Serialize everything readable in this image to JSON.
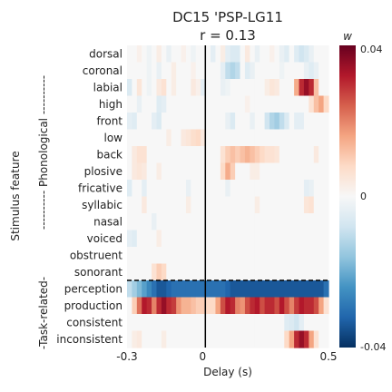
{
  "chart_data": {
    "type": "heatmap",
    "title": "DC15 'PSP-LG11",
    "subtitle": "r = 0.13",
    "xlabel": "Delay (s)",
    "ylabel": "Stimulus feature",
    "x_range": [
      -0.3,
      0.5
    ],
    "x_ticks": [
      "-0.3",
      "0",
      "0.5"
    ],
    "rows": [
      "dorsal",
      "coronal",
      "labial",
      "high",
      "front",
      "low",
      "back",
      "plosive",
      "fricative",
      "syllabic",
      "nasal",
      "voiced",
      "obstruent",
      "sonorant",
      "perception",
      "production",
      "consistent",
      "inconsistent"
    ],
    "groups": [
      {
        "label": "---------- Phonological ----------",
        "rows": [
          "dorsal",
          "coronal",
          "labial",
          "high",
          "front",
          "low",
          "back",
          "plosive",
          "fricative",
          "syllabic",
          "nasal",
          "voiced",
          "obstruent",
          "sonorant"
        ]
      },
      {
        "label": "-Task-related-",
        "rows": [
          "perception",
          "production",
          "consistent",
          "inconsistent"
        ]
      }
    ],
    "colorbar": {
      "label": "w",
      "max_label": "0.04",
      "mid_label": "0",
      "min_label": "-0.04",
      "vmin": -0.04,
      "vmax": 0.04,
      "colormap": "RdBu_r"
    },
    "n_delays": 41,
    "weights_note": "w values per row (41 delays from -0.3 s to 0.5 s), estimated from the colour",
    "values": [
      [
        0.0,
        0.0,
        0.002,
        0.0,
        -0.002,
        0.0,
        0.003,
        0.0,
        -0.003,
        0.0,
        0.0,
        0.002,
        0.0,
        -0.002,
        0.0,
        0.0,
        0.0,
        -0.004,
        0.0,
        0.003,
        -0.004,
        -0.006,
        -0.006,
        0.0,
        0.004,
        0.0,
        -0.003,
        0.0,
        0.0,
        0.002,
        0.0,
        -0.003,
        -0.005,
        0.0,
        -0.005,
        -0.008,
        -0.006,
        -0.003,
        0.0,
        0.0,
        0.0
      ],
      [
        0.0,
        0.0,
        0.0,
        0.0,
        -0.002,
        0.0,
        -0.003,
        0.0,
        0.0,
        0.003,
        0.0,
        0.0,
        0.0,
        0.002,
        0.0,
        0.0,
        0.0,
        0.0,
        0.0,
        -0.004,
        -0.01,
        -0.012,
        -0.01,
        0.0,
        -0.005,
        -0.003,
        0.0,
        0.0,
        0.0,
        0.0,
        0.0,
        -0.002,
        0.0,
        0.0,
        0.0,
        0.0,
        -0.003,
        -0.005,
        -0.003,
        0.0,
        0.0
      ],
      [
        -0.006,
        0.0,
        0.005,
        0.0,
        -0.002,
        0.0,
        0.004,
        0.006,
        0.0,
        0.003,
        0.0,
        0.0,
        0.0,
        0.004,
        0.002,
        -0.004,
        0.0,
        0.0,
        0.0,
        -0.003,
        -0.002,
        0.0,
        0.0,
        0.0,
        0.0,
        0.0,
        0.0,
        0.0,
        0.003,
        0.005,
        0.004,
        0.0,
        0.0,
        0.0,
        0.015,
        0.03,
        0.035,
        0.03,
        0.012,
        0.0,
        0.0
      ],
      [
        0.0,
        0.0,
        -0.003,
        0.0,
        0.0,
        0.0,
        -0.005,
        -0.004,
        0.0,
        0.0,
        0.0,
        0.0,
        0.0,
        0.0,
        0.0,
        0.0,
        0.0,
        0.0,
        0.0,
        0.0,
        0.0,
        0.0,
        0.0,
        0.0,
        0.002,
        0.0,
        0.0,
        0.0,
        0.0,
        0.0,
        0.0,
        0.0,
        0.0,
        0.0,
        0.0,
        0.0,
        0.0,
        0.006,
        0.012,
        0.016,
        0.008
      ],
      [
        -0.004,
        -0.005,
        0.0,
        0.0,
        0.0,
        -0.004,
        -0.006,
        0.0,
        0.0,
        0.0,
        0.0,
        0.0,
        0.0,
        0.0,
        0.0,
        0.0,
        0.0,
        0.0,
        0.0,
        0.0,
        -0.003,
        -0.006,
        0.0,
        0.0,
        0.0,
        -0.003,
        0.0,
        0.0,
        -0.008,
        -0.012,
        -0.014,
        -0.01,
        -0.006,
        0.0,
        -0.004,
        -0.004,
        0.0,
        0.0,
        0.0,
        0.0,
        0.0
      ],
      [
        0.0,
        0.0,
        0.0,
        0.0,
        0.0,
        0.0,
        0.0,
        0.0,
        0.003,
        0.0,
        0.0,
        0.004,
        0.005,
        0.007,
        0.008,
        0.004,
        0.0,
        0.0,
        0.0,
        0.0,
        0.0,
        0.0,
        0.0,
        0.0,
        0.0,
        0.0,
        0.0,
        0.0,
        0.0,
        0.0,
        0.0,
        0.0,
        0.0,
        0.0,
        0.0,
        0.0,
        0.0,
        0.0,
        0.0,
        0.0,
        0.0
      ],
      [
        0.0,
        0.004,
        0.006,
        0.006,
        0.0,
        0.0,
        0.0,
        0.0,
        0.0,
        0.0,
        0.0,
        0.0,
        0.0,
        0.0,
        0.0,
        0.0,
        0.0,
        0.0,
        0.0,
        0.006,
        0.01,
        0.012,
        0.01,
        0.012,
        0.014,
        0.012,
        0.01,
        0.008,
        0.006,
        0.006,
        0.005,
        0.0,
        0.0,
        0.0,
        0.0,
        0.0,
        0.0,
        0.0,
        0.004,
        0.0,
        0.0
      ],
      [
        0.0,
        0.004,
        0.005,
        0.004,
        0.0,
        0.0,
        0.003,
        0.0,
        0.0,
        0.0,
        0.0,
        0.0,
        0.0,
        0.0,
        0.0,
        0.0,
        0.0,
        0.0,
        0.0,
        0.008,
        0.015,
        0.01,
        0.0,
        0.0,
        0.0,
        0.003,
        0.003,
        0.0,
        0.0,
        0.0,
        0.0,
        0.0,
        0.0,
        0.0,
        0.0,
        0.0,
        0.0,
        0.0,
        0.0,
        0.0,
        0.0
      ],
      [
        -0.005,
        0.0,
        0.0,
        -0.004,
        0.0,
        0.0,
        0.0,
        0.0,
        0.0,
        0.0,
        0.0,
        0.0,
        -0.003,
        0.0,
        0.0,
        0.0,
        0.0,
        0.0,
        0.0,
        0.0,
        -0.003,
        0.0,
        0.0,
        0.0,
        0.0,
        0.0,
        0.0,
        0.0,
        0.0,
        0.0,
        0.0,
        0.0,
        0.0,
        0.0,
        0.0,
        0.0,
        -0.004,
        -0.003,
        0.0,
        0.0,
        0.0
      ],
      [
        0.0,
        0.0,
        0.0,
        0.004,
        0.0,
        0.0,
        0.0,
        0.0,
        0.0,
        0.0,
        0.0,
        0.0,
        0.003,
        0.0,
        0.0,
        0.0,
        0.0,
        0.0,
        0.0,
        0.0,
        0.0,
        0.0,
        0.0,
        0.0,
        0.0,
        0.0,
        0.003,
        0.0,
        0.0,
        0.0,
        0.0,
        0.0,
        0.0,
        0.0,
        0.0,
        0.0,
        0.005,
        0.006,
        0.0,
        0.0,
        0.0
      ],
      [
        0.0,
        0.0,
        0.0,
        0.0,
        0.0,
        -0.003,
        0.0,
        0.0,
        0.0,
        0.0,
        0.0,
        0.0,
        0.0,
        0.0,
        0.0,
        0.0,
        0.0,
        0.0,
        0.0,
        0.0,
        0.0,
        0.0,
        0.0,
        0.0,
        0.0,
        0.0,
        0.0,
        0.0,
        0.0,
        0.0,
        0.0,
        0.0,
        0.0,
        0.0,
        0.0,
        0.0,
        0.0,
        0.0,
        0.0,
        0.0,
        0.0
      ],
      [
        -0.004,
        -0.005,
        0.0,
        0.0,
        0.0,
        0.0,
        0.003,
        0.0,
        0.0,
        0.0,
        0.0,
        0.0,
        0.0,
        0.0,
        0.0,
        0.0,
        0.0,
        0.0,
        0.0,
        0.0,
        0.0,
        0.0,
        0.0,
        0.0,
        0.0,
        0.0,
        0.0,
        0.0,
        0.0,
        0.0,
        0.0,
        0.0,
        0.0,
        0.0,
        0.0,
        0.0,
        0.0,
        0.0,
        0.0,
        0.0,
        0.0
      ],
      [
        0.0,
        0.0,
        0.0,
        0.0,
        0.0,
        0.0,
        0.0,
        0.0,
        0.0,
        0.0,
        0.0,
        0.0,
        0.0,
        0.0,
        0.0,
        0.0,
        0.0,
        0.0,
        0.0,
        0.0,
        0.0,
        0.0,
        0.0,
        0.0,
        0.0,
        0.0,
        0.0,
        0.0,
        0.0,
        0.0,
        0.0,
        0.0,
        0.0,
        0.0,
        0.0,
        0.0,
        0.0,
        0.0,
        0.0,
        0.0,
        0.0
      ],
      [
        0.0,
        0.0,
        0.0,
        0.0,
        0.0,
        0.006,
        0.01,
        0.008,
        0.0,
        0.0,
        0.0,
        0.0,
        0.0,
        0.0,
        0.0,
        0.0,
        0.0,
        0.0,
        0.0,
        0.0,
        0.0,
        0.0,
        0.0,
        0.0,
        0.0,
        0.0,
        0.0,
        0.0,
        0.0,
        0.0,
        0.0,
        0.0,
        0.0,
        0.0,
        0.0,
        0.0,
        0.0,
        0.0,
        0.0,
        0.0,
        0.0
      ],
      [
        -0.01,
        -0.014,
        -0.018,
        -0.022,
        -0.026,
        -0.03,
        -0.034,
        -0.034,
        -0.032,
        -0.03,
        -0.03,
        -0.03,
        -0.03,
        -0.03,
        -0.03,
        -0.03,
        -0.03,
        -0.03,
        -0.03,
        -0.03,
        -0.032,
        -0.034,
        -0.034,
        -0.034,
        -0.034,
        -0.034,
        -0.034,
        -0.034,
        -0.034,
        -0.034,
        -0.034,
        -0.034,
        -0.034,
        -0.034,
        -0.034,
        -0.034,
        -0.034,
        -0.034,
        -0.034,
        -0.034,
        -0.03
      ],
      [
        0.0,
        0.01,
        0.022,
        0.032,
        0.03,
        0.02,
        0.03,
        0.035,
        0.03,
        0.028,
        0.018,
        0.014,
        0.014,
        0.012,
        0.01,
        0.01,
        0.008,
        0.008,
        0.016,
        0.026,
        0.032,
        0.03,
        0.02,
        0.018,
        0.026,
        0.03,
        0.032,
        0.026,
        0.03,
        0.03,
        0.026,
        0.032,
        0.026,
        0.02,
        0.028,
        0.032,
        0.03,
        0.03,
        0.026,
        0.016,
        0.006
      ],
      [
        0.0,
        0.0,
        0.0,
        0.0,
        0.0,
        0.0,
        0.0,
        0.0,
        0.0,
        0.0,
        0.0,
        0.0,
        0.0,
        0.0,
        0.0,
        0.0,
        0.0,
        0.0,
        0.0,
        0.0,
        0.0,
        0.0,
        0.0,
        0.0,
        0.0,
        0.0,
        0.0,
        0.0,
        0.0,
        0.0,
        0.0,
        0.0,
        -0.005,
        -0.006,
        -0.008,
        -0.004,
        0.0,
        0.0,
        0.0,
        0.0,
        0.0
      ],
      [
        0.0,
        0.003,
        0.004,
        0.0,
        0.0,
        0.0,
        0.0,
        0.003,
        0.0,
        0.0,
        0.0,
        0.0,
        0.0,
        0.0,
        0.0,
        0.0,
        0.0,
        0.0,
        0.0,
        0.0,
        0.0,
        0.0,
        0.0,
        0.0,
        0.0,
        0.0,
        0.0,
        0.0,
        0.0,
        0.0,
        0.0,
        0.0,
        0.008,
        0.016,
        0.03,
        0.035,
        0.03,
        0.016,
        0.006,
        0.0,
        0.0
      ]
    ]
  }
}
